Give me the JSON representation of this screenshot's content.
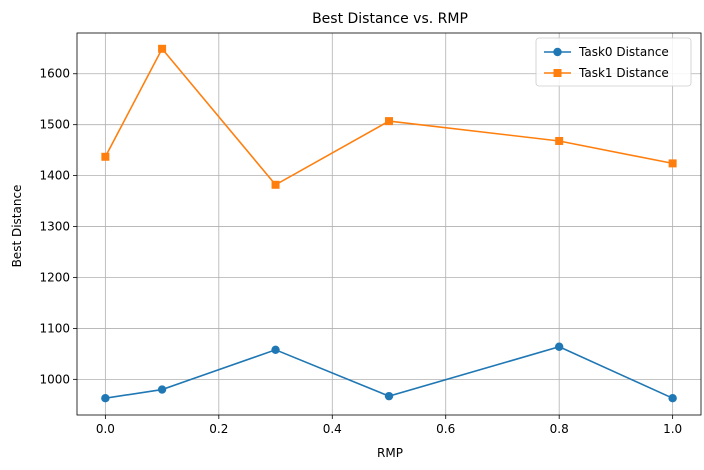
{
  "chart_data": {
    "type": "line",
    "title": "Best Distance vs. RMP",
    "xlabel": "RMP",
    "ylabel": "Best Distance",
    "xlim": [
      -0.05,
      1.05
    ],
    "ylim": [
      930,
      1680
    ],
    "x_ticks": [
      0.0,
      0.2,
      0.4,
      0.6,
      0.8,
      1.0
    ],
    "x_tick_labels": [
      "0.0",
      "0.2",
      "0.4",
      "0.6",
      "0.8",
      "1.0"
    ],
    "y_ticks": [
      1000,
      1100,
      1200,
      1300,
      1400,
      1500,
      1600
    ],
    "y_tick_labels": [
      "1000",
      "1100",
      "1200",
      "1300",
      "1400",
      "1500",
      "1600"
    ],
    "grid": true,
    "legend_position": "top-right",
    "x": [
      0.0,
      0.1,
      0.3,
      0.5,
      0.8,
      1.0
    ],
    "series": [
      {
        "name": "Task0 Distance",
        "values": [
          963,
          980,
          1058,
          967,
          1064,
          963
        ],
        "color": "#1f77b4",
        "marker": "circle"
      },
      {
        "name": "Task1 Distance",
        "values": [
          1437,
          1649,
          1382,
          1507,
          1468,
          1424
        ],
        "color": "#ff7f0e",
        "marker": "square"
      }
    ]
  }
}
